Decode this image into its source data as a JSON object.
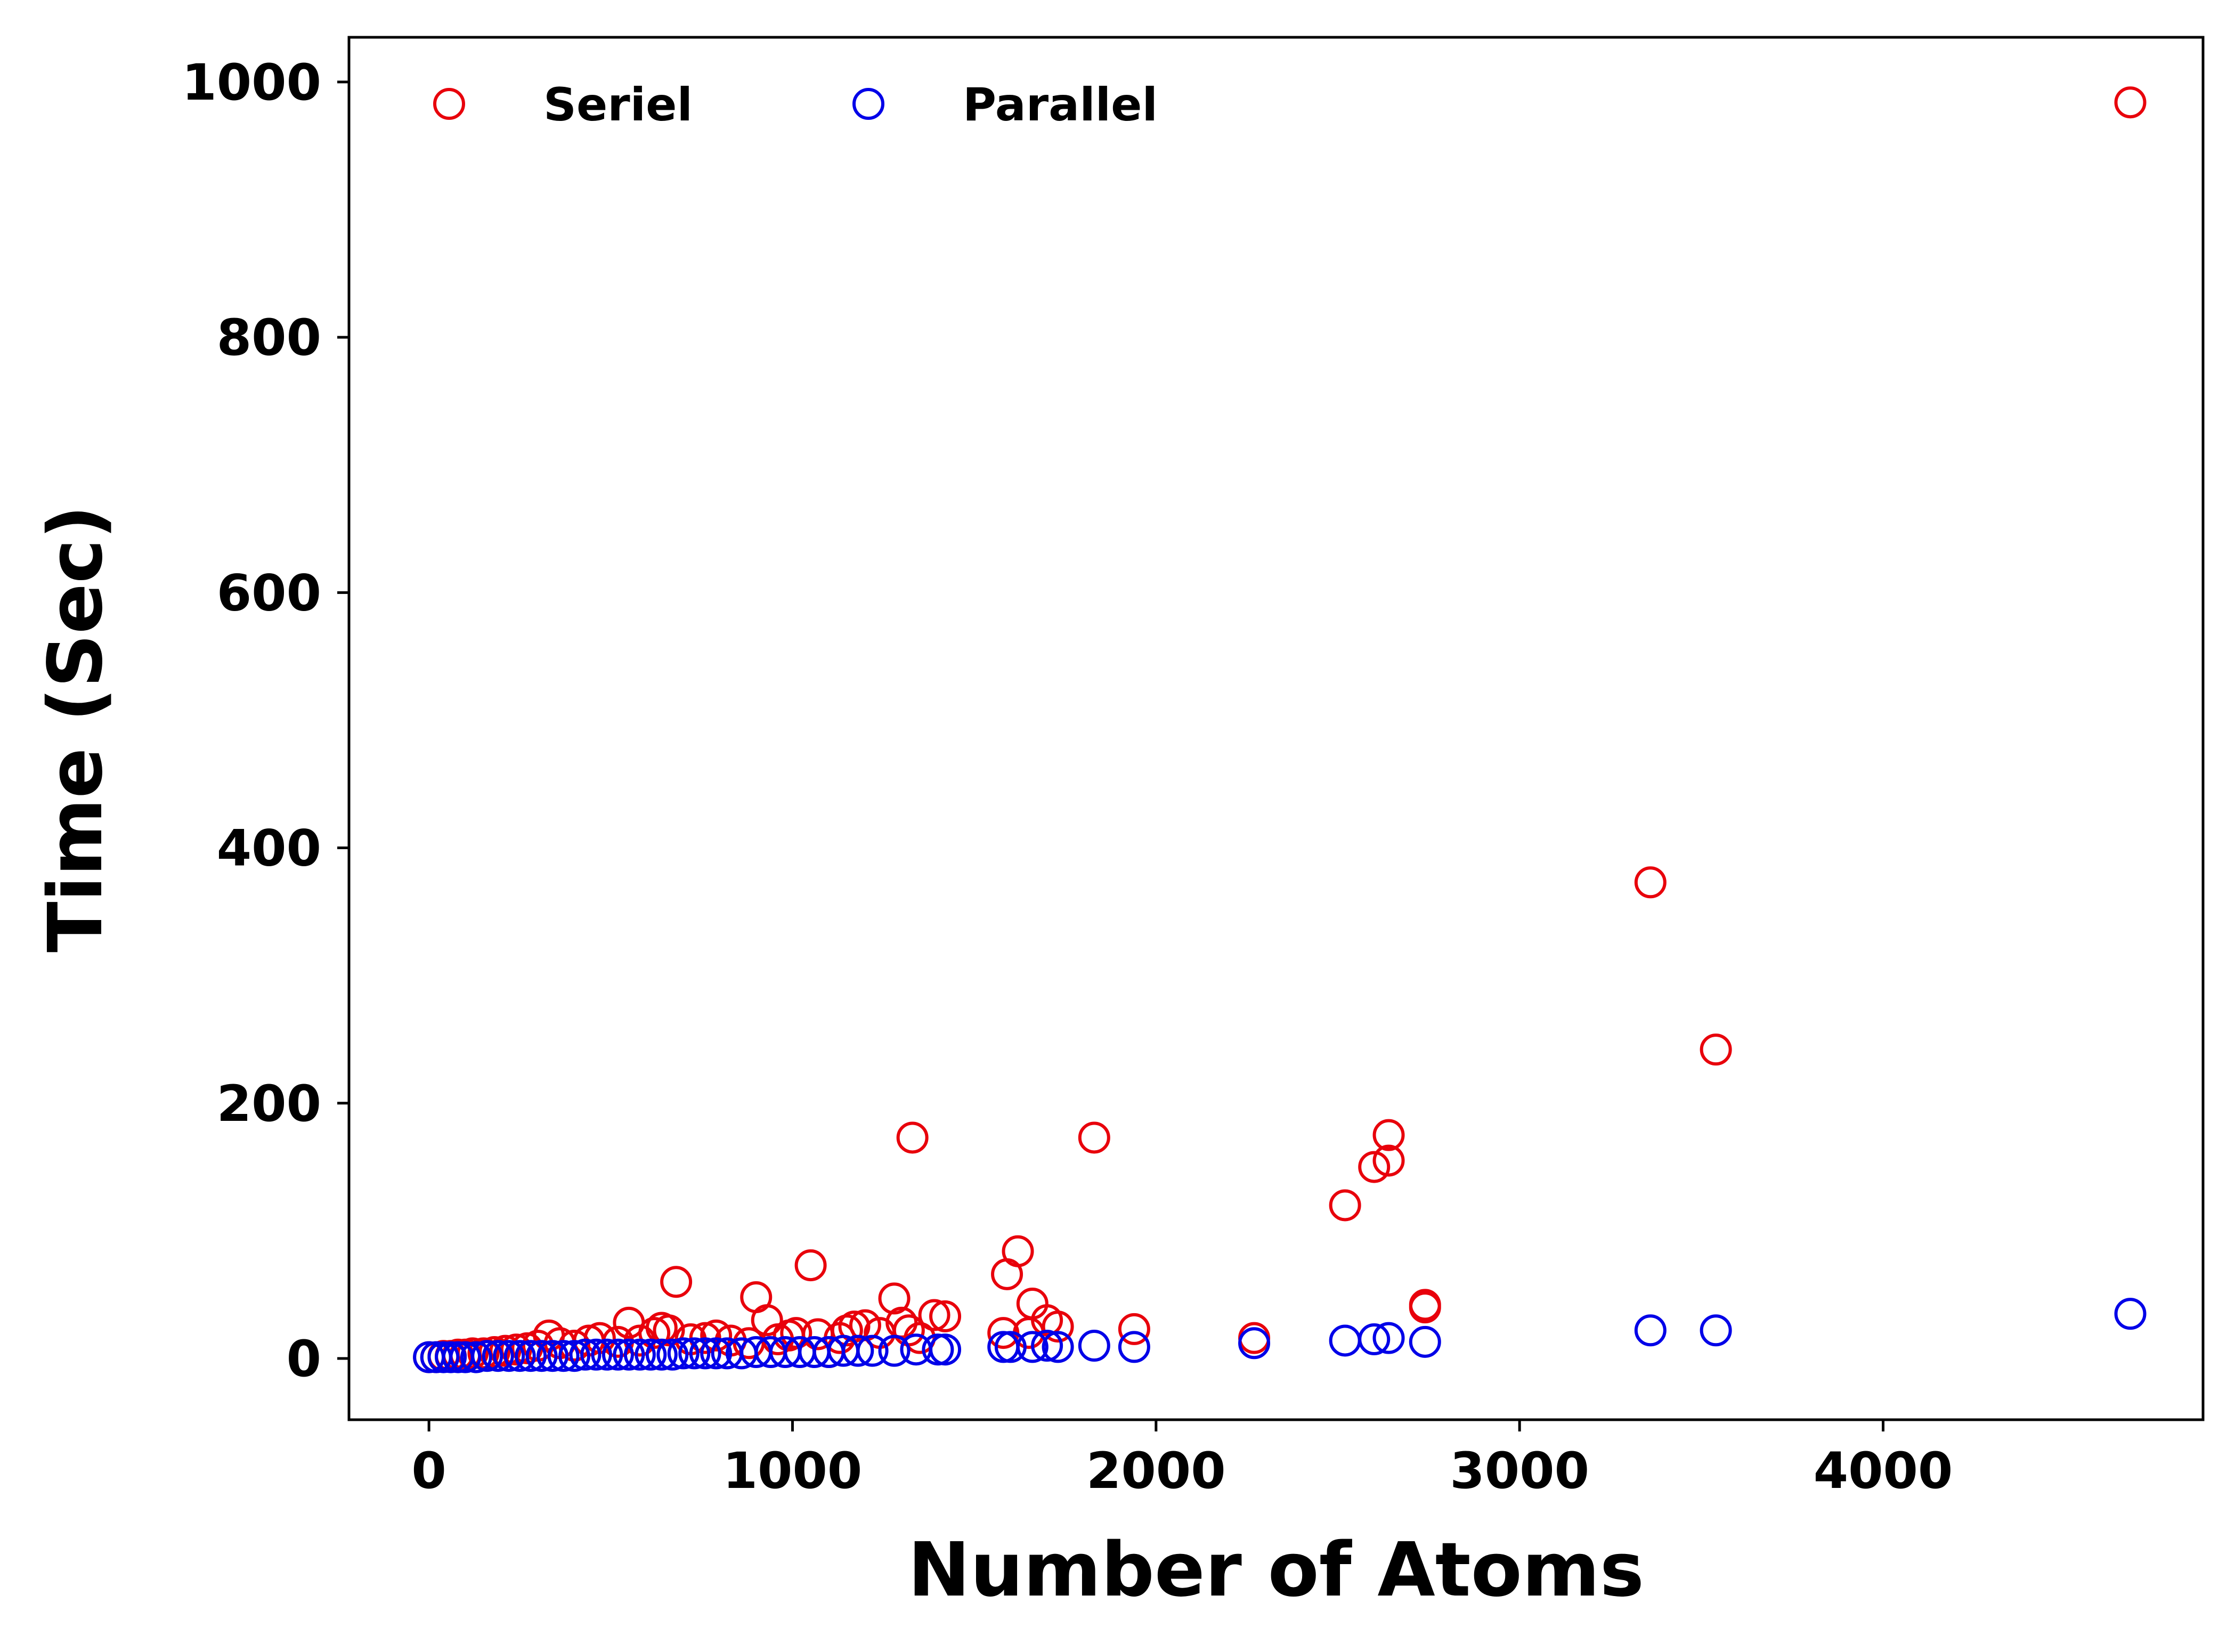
{
  "chart_data": {
    "type": "scatter",
    "title": "",
    "xlabel": "Number of Atoms",
    "ylabel": "Time (Sec)",
    "xlim": [
      -220,
      4880
    ],
    "ylim": [
      -48,
      1035
    ],
    "xticks": [
      0,
      1000,
      2000,
      3000,
      4000
    ],
    "yticks": [
      0,
      200,
      400,
      600,
      800,
      1000
    ],
    "xtick_labels": [
      "0",
      "1000",
      "2000",
      "3000",
      "4000"
    ],
    "ytick_labels": [
      "0",
      "200",
      "400",
      "600",
      "800",
      "1000"
    ],
    "grid": false,
    "legend": {
      "position": "top-left",
      "columns": 2
    },
    "series": [
      {
        "name": "Seriel",
        "color": "#e8000b",
        "marker": "open-circle",
        "points": [
          [
            0,
            1
          ],
          [
            20,
            1
          ],
          [
            40,
            2
          ],
          [
            60,
            2
          ],
          [
            80,
            3
          ],
          [
            100,
            3
          ],
          [
            120,
            4
          ],
          [
            150,
            4
          ],
          [
            180,
            5
          ],
          [
            210,
            6
          ],
          [
            240,
            7
          ],
          [
            270,
            8
          ],
          [
            300,
            10
          ],
          [
            330,
            18
          ],
          [
            360,
            12
          ],
          [
            400,
            10
          ],
          [
            440,
            14
          ],
          [
            470,
            16
          ],
          [
            520,
            13
          ],
          [
            550,
            28
          ],
          [
            580,
            14
          ],
          [
            620,
            20
          ],
          [
            640,
            24
          ],
          [
            660,
            22
          ],
          [
            680,
            60
          ],
          [
            720,
            15
          ],
          [
            760,
            16
          ],
          [
            790,
            18
          ],
          [
            830,
            14
          ],
          [
            880,
            12
          ],
          [
            900,
            48
          ],
          [
            930,
            30
          ],
          [
            960,
            15
          ],
          [
            990,
            18
          ],
          [
            1010,
            20
          ],
          [
            1050,
            73
          ],
          [
            1070,
            19
          ],
          [
            1100,
            5
          ],
          [
            1130,
            16
          ],
          [
            1150,
            22
          ],
          [
            1170,
            25
          ],
          [
            1200,
            26
          ],
          [
            1240,
            20
          ],
          [
            1280,
            47
          ],
          [
            1300,
            28
          ],
          [
            1320,
            22
          ],
          [
            1330,
            173
          ],
          [
            1350,
            16
          ],
          [
            1390,
            34
          ],
          [
            1420,
            33
          ],
          [
            1580,
            20
          ],
          [
            1590,
            66
          ],
          [
            1620,
            84
          ],
          [
            1650,
            20
          ],
          [
            1660,
            43
          ],
          [
            1700,
            30
          ],
          [
            1730,
            25
          ],
          [
            1830,
            173
          ],
          [
            1940,
            23
          ],
          [
            2270,
            16
          ],
          [
            2520,
            120
          ],
          [
            2600,
            150
          ],
          [
            2640,
            155
          ],
          [
            2640,
            175
          ],
          [
            2740,
            40
          ],
          [
            2740,
            42
          ],
          [
            3360,
            373
          ],
          [
            3540,
            242
          ],
          [
            4680,
            984
          ]
        ]
      },
      {
        "name": "Parallel",
        "color": "#0000e8",
        "marker": "open-circle",
        "points": [
          [
            0,
            1
          ],
          [
            20,
            1
          ],
          [
            40,
            1
          ],
          [
            60,
            1
          ],
          [
            80,
            1
          ],
          [
            100,
            1
          ],
          [
            130,
            1
          ],
          [
            160,
            2
          ],
          [
            190,
            2
          ],
          [
            220,
            2
          ],
          [
            250,
            2
          ],
          [
            280,
            2
          ],
          [
            310,
            2
          ],
          [
            340,
            2
          ],
          [
            370,
            2
          ],
          [
            400,
            2
          ],
          [
            430,
            3
          ],
          [
            460,
            3
          ],
          [
            490,
            3
          ],
          [
            520,
            3
          ],
          [
            550,
            3
          ],
          [
            580,
            3
          ],
          [
            610,
            3
          ],
          [
            640,
            3
          ],
          [
            670,
            3
          ],
          [
            700,
            4
          ],
          [
            730,
            4
          ],
          [
            760,
            4
          ],
          [
            790,
            4
          ],
          [
            820,
            4
          ],
          [
            860,
            4
          ],
          [
            900,
            5
          ],
          [
            940,
            5
          ],
          [
            980,
            5
          ],
          [
            1020,
            5
          ],
          [
            1060,
            5
          ],
          [
            1100,
            5
          ],
          [
            1140,
            6
          ],
          [
            1180,
            6
          ],
          [
            1220,
            6
          ],
          [
            1280,
            6
          ],
          [
            1340,
            7
          ],
          [
            1400,
            7
          ],
          [
            1420,
            7
          ],
          [
            1580,
            9
          ],
          [
            1600,
            9
          ],
          [
            1660,
            9
          ],
          [
            1700,
            10
          ],
          [
            1730,
            9
          ],
          [
            1830,
            10
          ],
          [
            1940,
            9
          ],
          [
            2270,
            12
          ],
          [
            2520,
            14
          ],
          [
            2600,
            15
          ],
          [
            2640,
            16
          ],
          [
            2740,
            13
          ],
          [
            3360,
            22
          ],
          [
            3540,
            22
          ],
          [
            4680,
            35
          ]
        ]
      }
    ]
  }
}
